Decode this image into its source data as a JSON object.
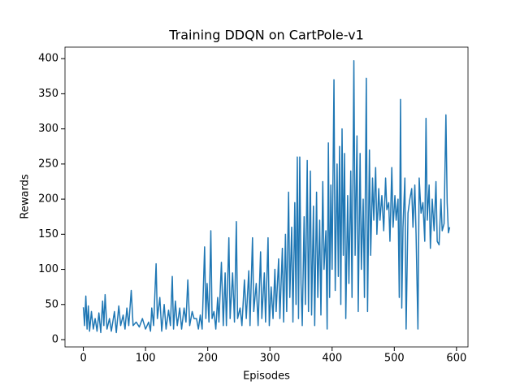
{
  "chart_data": {
    "type": "line",
    "title": "Training DDQN on CartPole-v1",
    "x_label": "Episodes",
    "y_label": "Rewards",
    "color": "#1f77b4",
    "x": [
      0,
      2,
      4,
      6,
      8,
      10,
      13,
      16,
      19,
      22,
      25,
      28,
      31,
      33,
      35,
      38,
      42,
      45,
      50,
      53,
      57,
      60,
      64,
      67,
      70,
      73,
      77,
      80,
      85,
      90,
      95,
      100,
      105,
      108,
      110,
      113,
      117,
      119,
      123,
      126,
      130,
      133,
      137,
      140,
      143,
      145,
      148,
      151,
      155,
      158,
      162,
      165,
      168,
      171,
      175,
      178,
      182,
      185,
      188,
      191,
      195,
      197,
      199,
      202,
      205,
      207,
      210,
      213,
      216,
      218,
      222,
      225,
      228,
      230,
      234,
      236,
      240,
      243,
      246,
      248,
      252,
      255,
      259,
      262,
      266,
      268,
      272,
      274,
      278,
      281,
      285,
      287,
      291,
      293,
      297,
      299,
      302,
      305,
      308,
      310,
      314,
      316,
      320,
      322,
      325,
      327,
      330,
      332,
      335,
      337,
      340,
      342,
      344,
      346,
      348,
      350,
      352,
      355,
      357,
      360,
      362,
      365,
      367,
      370,
      372,
      375,
      377,
      380,
      382,
      385,
      387,
      390,
      392,
      394,
      396,
      398,
      400,
      403,
      405,
      408,
      410,
      412,
      414,
      416,
      418,
      420,
      422,
      425,
      427,
      430,
      432,
      435,
      437,
      440,
      442,
      445,
      447,
      450,
      452,
      455,
      457,
      460,
      462,
      465,
      467,
      470,
      472,
      475,
      477,
      480,
      483,
      486,
      488,
      491,
      493,
      496,
      498,
      501,
      503,
      506,
      508,
      510,
      512,
      514,
      517,
      519,
      522,
      525,
      528,
      530,
      533,
      535,
      538,
      540,
      543,
      546,
      549,
      551,
      553,
      556,
      558,
      561,
      564,
      567,
      569,
      572,
      575,
      577,
      580,
      583,
      585,
      587,
      589
    ],
    "values": [
      46,
      20,
      62,
      15,
      48,
      12,
      40,
      15,
      30,
      12,
      38,
      10,
      55,
      20,
      64,
      15,
      30,
      12,
      40,
      10,
      48,
      20,
      35,
      15,
      45,
      20,
      70,
      20,
      25,
      18,
      30,
      15,
      25,
      12,
      45,
      20,
      108,
      30,
      60,
      12,
      50,
      15,
      42,
      20,
      90,
      15,
      55,
      20,
      45,
      15,
      45,
      25,
      85,
      20,
      40,
      30,
      30,
      15,
      35,
      15,
      132,
      30,
      80,
      25,
      155,
      30,
      40,
      15,
      60,
      25,
      110,
      20,
      95,
      20,
      145,
      30,
      95,
      25,
      168,
      30,
      45,
      20,
      85,
      30,
      98,
      20,
      145,
      40,
      80,
      20,
      125,
      30,
      95,
      25,
      145,
      20,
      75,
      30,
      100,
      40,
      115,
      30,
      130,
      25,
      150,
      40,
      210,
      60,
      160,
      25,
      195,
      50,
      260,
      30,
      260,
      80,
      20,
      175,
      50,
      255,
      40,
      240,
      35,
      190,
      20,
      210,
      60,
      170,
      35,
      225,
      100,
      155,
      15,
      280,
      60,
      220,
      100,
      370,
      70,
      250,
      90,
      275,
      50,
      300,
      120,
      265,
      30,
      205,
      80,
      240,
      60,
      397,
      120,
      290,
      40,
      265,
      100,
      200,
      60,
      372,
      40,
      270,
      120,
      230,
      170,
      245,
      150,
      215,
      170,
      205,
      155,
      230,
      185,
      195,
      140,
      245,
      160,
      205,
      170,
      200,
      60,
      342,
      45,
      160,
      230,
      15,
      180,
      200,
      215,
      160,
      220,
      150,
      15,
      230,
      180,
      195,
      140,
      315,
      170,
      220,
      130,
      200,
      155,
      225,
      140,
      135,
      200,
      155,
      165,
      320,
      195,
      152,
      160
    ],
    "xlim": [
      -29.5,
      618.5
    ],
    "ylim": [
      -10.4,
      416.4
    ],
    "xticks": [
      0,
      100,
      200,
      300,
      400,
      500,
      600
    ],
    "yticks": [
      0,
      50,
      100,
      150,
      200,
      250,
      300,
      350,
      400
    ]
  }
}
